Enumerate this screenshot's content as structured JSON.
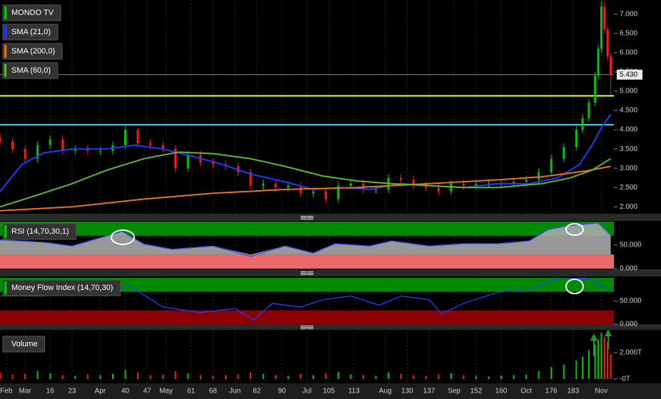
{
  "chart_data": [
    {
      "type": "candlestick",
      "title": "MONDO TV",
      "color_up": "#00c800",
      "color_down": "#ff1a1a",
      "x": [
        0,
        4,
        8,
        12,
        16,
        20,
        24,
        28,
        32,
        36,
        40,
        44,
        48,
        52,
        56,
        60,
        64,
        68,
        72,
        76,
        80,
        84,
        88,
        92,
        96,
        100,
        104,
        108,
        112,
        116,
        120,
        124,
        128,
        132,
        136,
        140,
        144,
        148,
        152,
        156,
        160,
        164,
        168,
        172,
        176,
        180,
        184,
        186,
        188,
        190,
        191,
        192,
        193,
        194,
        195
      ],
      "open": [
        3.8,
        3.7,
        3.5,
        3.25,
        3.6,
        3.75,
        3.45,
        3.5,
        3.45,
        3.45,
        3.6,
        4.0,
        3.65,
        3.6,
        3.5,
        3.0,
        3.35,
        3.15,
        3.1,
        3.05,
        2.9,
        2.55,
        2.6,
        2.5,
        2.55,
        2.35,
        2.4,
        2.2,
        2.55,
        2.6,
        2.45,
        2.45,
        2.75,
        2.7,
        2.55,
        2.5,
        2.4,
        2.6,
        2.55,
        2.6,
        2.6,
        2.6,
        2.65,
        2.7,
        2.9,
        3.25,
        3.55,
        4.0,
        4.3,
        4.7,
        5.4,
        6.1,
        7.2,
        6.6,
        5.9
      ],
      "high": [
        3.9,
        3.8,
        3.6,
        3.7,
        3.85,
        3.85,
        3.6,
        3.6,
        3.55,
        3.7,
        4.1,
        4.05,
        3.75,
        3.7,
        3.6,
        3.45,
        3.45,
        3.25,
        3.2,
        3.15,
        3.0,
        2.7,
        2.7,
        2.65,
        2.65,
        2.5,
        2.5,
        2.65,
        2.7,
        2.7,
        2.55,
        2.85,
        2.85,
        2.8,
        2.65,
        2.6,
        2.7,
        2.7,
        2.7,
        2.7,
        2.7,
        2.75,
        2.8,
        3.0,
        3.35,
        3.65,
        4.1,
        4.4,
        4.8,
        5.5,
        6.2,
        7.33,
        7.33,
        6.7,
        6.0
      ],
      "low": [
        3.6,
        3.4,
        3.15,
        3.15,
        3.5,
        3.35,
        3.35,
        3.35,
        3.35,
        3.35,
        3.5,
        3.55,
        3.5,
        3.4,
        2.9,
        2.9,
        3.05,
        3.0,
        2.95,
        2.8,
        2.45,
        2.45,
        2.4,
        2.4,
        2.25,
        2.25,
        2.1,
        2.1,
        2.45,
        2.35,
        2.35,
        2.35,
        2.6,
        2.45,
        2.4,
        2.3,
        2.3,
        2.45,
        2.45,
        2.5,
        2.5,
        2.5,
        2.55,
        2.6,
        2.8,
        3.15,
        3.45,
        3.9,
        4.2,
        4.6,
        5.3,
        6.0,
        6.5,
        5.8,
        4.9
      ],
      "close": [
        3.7,
        3.5,
        3.25,
        3.6,
        3.75,
        3.45,
        3.5,
        3.45,
        3.45,
        3.6,
        4.0,
        3.65,
        3.6,
        3.5,
        3.0,
        3.35,
        3.15,
        3.1,
        3.05,
        2.9,
        2.55,
        2.6,
        2.5,
        2.55,
        2.35,
        2.4,
        2.2,
        2.55,
        2.6,
        2.45,
        2.45,
        2.75,
        2.7,
        2.55,
        2.5,
        2.4,
        2.6,
        2.55,
        2.6,
        2.6,
        2.6,
        2.65,
        2.7,
        2.9,
        3.25,
        3.55,
        4.0,
        4.3,
        4.7,
        5.4,
        6.1,
        7.2,
        6.6,
        5.9,
        5.43
      ],
      "lines": [
        {
          "name": "SMA (21,0)",
          "color": "#1e3cff",
          "x": [
            0,
            7,
            14,
            23,
            34,
            43,
            52,
            62,
            71,
            80,
            91,
            100,
            109,
            118,
            128,
            137,
            148,
            159,
            169,
            178,
            185,
            189,
            192,
            195
          ],
          "values": [
            2.4,
            3.1,
            3.4,
            3.5,
            3.5,
            3.6,
            3.5,
            3.3,
            3.1,
            2.85,
            2.65,
            2.45,
            2.5,
            2.45,
            2.6,
            2.55,
            2.5,
            2.6,
            2.6,
            2.75,
            3.1,
            3.6,
            4.05,
            4.4
          ]
        },
        {
          "name": "SMA (200,0)",
          "color": "#e8731a",
          "x": [
            0,
            23,
            46,
            68,
            91,
            114,
            137,
            159,
            173,
            187,
            195
          ],
          "values": [
            1.9,
            2.0,
            2.2,
            2.35,
            2.45,
            2.5,
            2.6,
            2.7,
            2.78,
            2.93,
            3.05
          ]
        },
        {
          "name": "SMA (60,0)",
          "color": "#5fb82a",
          "x": [
            0,
            11,
            23,
            34,
            46,
            57,
            68,
            80,
            91,
            103,
            114,
            125,
            137,
            148,
            159,
            173,
            182,
            189,
            195
          ],
          "values": [
            2.0,
            2.28,
            2.6,
            2.95,
            3.25,
            3.42,
            3.38,
            3.25,
            3.05,
            2.8,
            2.67,
            2.6,
            2.55,
            2.5,
            2.5,
            2.6,
            2.75,
            2.95,
            3.25
          ]
        }
      ],
      "hlines": [
        {
          "value": 4.88,
          "color": "#ffff33"
        },
        {
          "value": 4.13,
          "color": "#33e0ff"
        }
      ],
      "last_price": {
        "value": 5.43,
        "label": "5.430"
      },
      "xlim": [
        0,
        196
      ],
      "ylim": [
        1.82,
        7.33
      ],
      "yticks": [
        {
          "value": 2,
          "label": "2.000"
        },
        {
          "value": 2.5,
          "label": "2.500"
        },
        {
          "value": 3,
          "label": "3.000"
        },
        {
          "value": 3.5,
          "label": "3.500"
        },
        {
          "value": 4,
          "label": "4.000"
        },
        {
          "value": 4.5,
          "label": "4.500"
        },
        {
          "value": 5,
          "label": "5.000"
        },
        {
          "value": 5.5,
          "label": "5.500"
        },
        {
          "value": 6,
          "label": "6.000"
        },
        {
          "value": 6.5,
          "label": "6.500"
        },
        {
          "value": 7,
          "label": "7.000"
        }
      ]
    },
    {
      "type": "line",
      "title": "RSI (14,70,30,1)",
      "color": "#3050ff",
      "fill": "#a8a8a8",
      "x": [
        0,
        14,
        23,
        39,
        46,
        55,
        68,
        80,
        91,
        100,
        107,
        118,
        125,
        137,
        148,
        159,
        169,
        175,
        182,
        191,
        195
      ],
      "values": [
        61,
        56,
        48,
        79,
        52,
        41,
        48,
        26,
        48,
        33,
        53,
        48,
        59,
        48,
        53,
        53,
        59,
        83,
        92,
        97,
        71
      ],
      "bands": [
        {
          "from": 70,
          "to": 100,
          "color": "#008a00"
        },
        {
          "from": 0,
          "to": 30,
          "color": "#e86a6a"
        }
      ],
      "xlim": [
        0,
        196
      ],
      "ylim": [
        0,
        100
      ],
      "yticks": [
        {
          "value": 0,
          "label": "0.000"
        },
        {
          "value": 50,
          "label": "50.000"
        }
      ]
    },
    {
      "type": "line",
      "title": "Money Flow Index (14,70,30)",
      "color": "#2040ff",
      "x": [
        0,
        14,
        23,
        34,
        41,
        52,
        64,
        75,
        81,
        87,
        96,
        103,
        112,
        121,
        128,
        137,
        141,
        148,
        159,
        169,
        178,
        187,
        195
      ],
      "values": [
        61,
        61,
        69,
        61,
        84,
        37,
        25,
        34,
        9,
        45,
        37,
        53,
        61,
        41,
        61,
        53,
        22,
        45,
        69,
        77,
        97,
        100,
        73
      ],
      "bands": [
        {
          "from": 70,
          "to": 100,
          "color": "#008a00"
        },
        {
          "from": 0,
          "to": 30,
          "color": "#8a0000"
        }
      ],
      "xlim": [
        0,
        196
      ],
      "ylim": [
        0,
        100
      ],
      "yticks": [
        {
          "value": 0,
          "label": "0.000"
        },
        {
          "value": 50,
          "label": "50.000"
        }
      ]
    },
    {
      "type": "bar",
      "title": "Volume",
      "x": [
        0,
        4,
        8,
        12,
        16,
        20,
        24,
        28,
        32,
        36,
        40,
        44,
        48,
        52,
        56,
        60,
        64,
        68,
        72,
        76,
        80,
        84,
        88,
        92,
        96,
        100,
        104,
        108,
        112,
        116,
        120,
        124,
        128,
        132,
        136,
        140,
        144,
        148,
        152,
        156,
        160,
        164,
        168,
        172,
        176,
        180,
        184,
        186,
        188,
        190,
        191,
        192,
        193,
        194,
        195
      ],
      "values": [
        500,
        350,
        400,
        600,
        450,
        300,
        250,
        350,
        300,
        400,
        700,
        500,
        300,
        350,
        600,
        450,
        300,
        250,
        300,
        350,
        500,
        400,
        300,
        250,
        400,
        300,
        450,
        550,
        350,
        300,
        250,
        500,
        400,
        300,
        250,
        350,
        450,
        300,
        250,
        200,
        250,
        300,
        350,
        600,
        900,
        1100,
        1400,
        1700,
        2200,
        2600,
        3000,
        3500,
        3200,
        2800,
        1900
      ],
      "xlim": [
        0,
        196
      ],
      "ylim": [
        0,
        3730
      ],
      "yticks": [
        {
          "value": 0,
          "label": "-0T"
        },
        {
          "value": 2000,
          "label": "2,000T"
        }
      ],
      "xticks": [
        {
          "value": 2,
          "label": "Feb"
        },
        {
          "value": 8,
          "label": "Mar"
        },
        16,
        23,
        {
          "value": 32,
          "label": "Apr"
        },
        40,
        47,
        {
          "value": 53,
          "label": "May"
        },
        61,
        68,
        {
          "value": 75,
          "label": "Jun"
        },
        82,
        90,
        {
          "value": 98,
          "label": "Jul"
        },
        105,
        113,
        {
          "value": 123,
          "label": "Aug"
        },
        130,
        137,
        {
          "value": 145,
          "label": "Sep"
        },
        152,
        160,
        {
          "value": 168,
          "label": "Oct"
        },
        176,
        183,
        {
          "value": 192,
          "label": "Nov"
        }
      ]
    }
  ]
}
